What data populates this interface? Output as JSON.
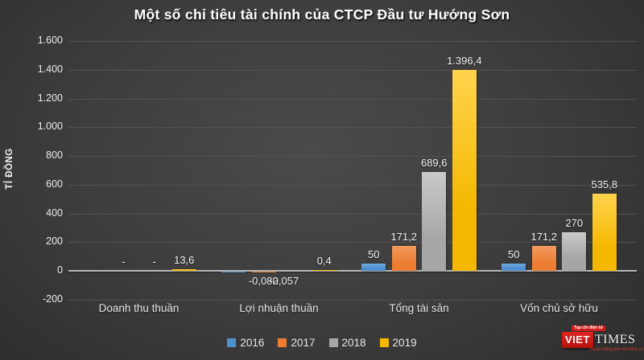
{
  "title": "Một số chỉ tiêu tài chính của CTCP Đầu tư Hướng Sơn",
  "y_axis": {
    "title": "TỈ ĐỒNG",
    "tick_labels": [
      "1.600",
      "1.400",
      "1.200",
      "1.000",
      "800",
      "600",
      "400",
      "200",
      "0",
      "-200"
    ],
    "max": 1600,
    "min": -200,
    "step": 200
  },
  "chart_data": {
    "type": "bar",
    "title": "Một số chỉ tiêu tài chính của CTCP Đầu tư Hướng Sơn",
    "ylabel": "TỈ ĐỒNG",
    "ylim": [
      -200,
      1600
    ],
    "grid": true,
    "legend_position": "bottom",
    "categories": [
      "Doanh thu thuần",
      "Lợi nhuận thuần",
      "Tổng tài sản",
      "Vốn chủ sở hữu"
    ],
    "series": [
      {
        "name": "2016",
        "color": "#4E8FD0",
        "color_light": "#6FA8DE",
        "values": [
          null,
          -0.082,
          50,
          50
        ],
        "labels": [
          "-",
          "-0,082",
          "50",
          "50"
        ]
      },
      {
        "name": "2017",
        "color": "#ED7D31",
        "color_light": "#F29A5E",
        "values": [
          null,
          -0.057,
          171.2,
          171.2
        ],
        "labels": [
          "-",
          "-0,057",
          "171,2",
          "171,2"
        ]
      },
      {
        "name": "2018",
        "color": "#A6A6A6",
        "color_light": "#C9C9C9",
        "values": [
          null,
          null,
          689.6,
          270
        ],
        "labels": [
          "",
          "",
          "689,6",
          "270"
        ]
      },
      {
        "name": "2019",
        "color": "#F5B800",
        "color_light": "#FFD34D",
        "values": [
          13.6,
          0.4,
          1396.4,
          535.8
        ],
        "labels": [
          "13,6",
          "0,4",
          "1.396,4",
          "535,8"
        ]
      }
    ]
  },
  "logo": {
    "tagline_top": "Tạp chí điện tử",
    "brand_left": "VIET",
    "brand_right": "TIMES",
    "tagline_bottom": "Truyền thông trên nền tảng số",
    "brand_color": "#cf1f1a"
  }
}
